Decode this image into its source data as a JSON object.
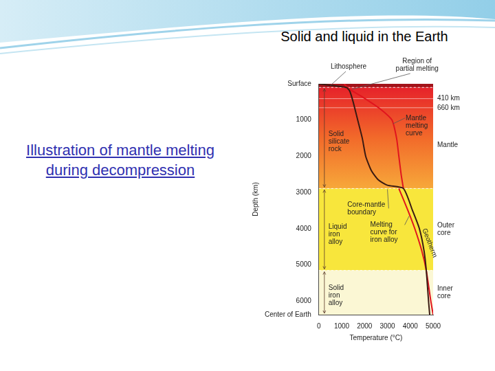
{
  "slide": {
    "title": "Solid and liquid in the Earth",
    "caption": "Illustration of mantle melting during decompression"
  },
  "chart_data": {
    "type": "line",
    "x_label": "Temperature (°C)",
    "y_label": "Depth (km)",
    "xlim": [
      0,
      5000
    ],
    "xticks": [
      0,
      1000,
      2000,
      3000,
      4000,
      5000
    ],
    "ylim": [
      0,
      6371
    ],
    "yticks": [
      {
        "value": 0,
        "label": "Surface"
      },
      1000,
      2000,
      3000,
      4000,
      5000,
      6000,
      {
        "value": 6371,
        "label": "Center of Earth"
      }
    ],
    "grid": false,
    "series": [
      {
        "name": "Geotherm",
        "color": "#3a1a12",
        "x": [
          0,
          1200,
          1350,
          1500,
          1700,
          1900,
          2050,
          2300,
          2600,
          3000,
          3700,
          4100,
          4400,
          4600,
          4700,
          4800,
          4850
        ],
        "values": [
          0,
          100,
          200,
          500,
          1000,
          1500,
          2000,
          2400,
          2650,
          2800,
          2890,
          3500,
          4000,
          4600,
          5150,
          6000,
          6371
        ]
      },
      {
        "name": "Mantle melting curve",
        "color": "#e0141e",
        "x": [
          1100,
          1350,
          2000,
          2700,
          3200,
          3400,
          3500,
          3600,
          3700
        ],
        "values": [
          0,
          150,
          400,
          700,
          1000,
          1500,
          2000,
          2500,
          2890
        ]
      },
      {
        "name": "Melting curve for iron alloy",
        "color": "#e0141e",
        "x": [
          3500,
          3900,
          4200,
          4500,
          4700,
          4900,
          5000
        ],
        "values": [
          2890,
          3500,
          4000,
          4600,
          5150,
          6000,
          6371
        ]
      }
    ],
    "layers": [
      {
        "name": "Lithosphere",
        "top": 0,
        "bottom": 100,
        "color": "#a3131a"
      },
      {
        "name": "Mantle",
        "top": 100,
        "bottom": 2890,
        "colors": [
          "#e6222a",
          "#f26a2a",
          "#f7a83a"
        ]
      },
      {
        "name": "Outer core",
        "top": 2890,
        "bottom": 5150,
        "color": "#f8e63c"
      },
      {
        "name": "Inner core",
        "top": 5150,
        "bottom": 6371,
        "color": "#fbf7d4"
      }
    ],
    "boundaries": [
      {
        "depth": 410,
        "label": "410 km"
      },
      {
        "depth": 660,
        "label": "660 km"
      }
    ],
    "annotations": [
      "Region of partial melting",
      "Solid silicate rock",
      "Core-mantle boundary",
      "Liquid iron alloy",
      "Solid iron alloy"
    ]
  }
}
